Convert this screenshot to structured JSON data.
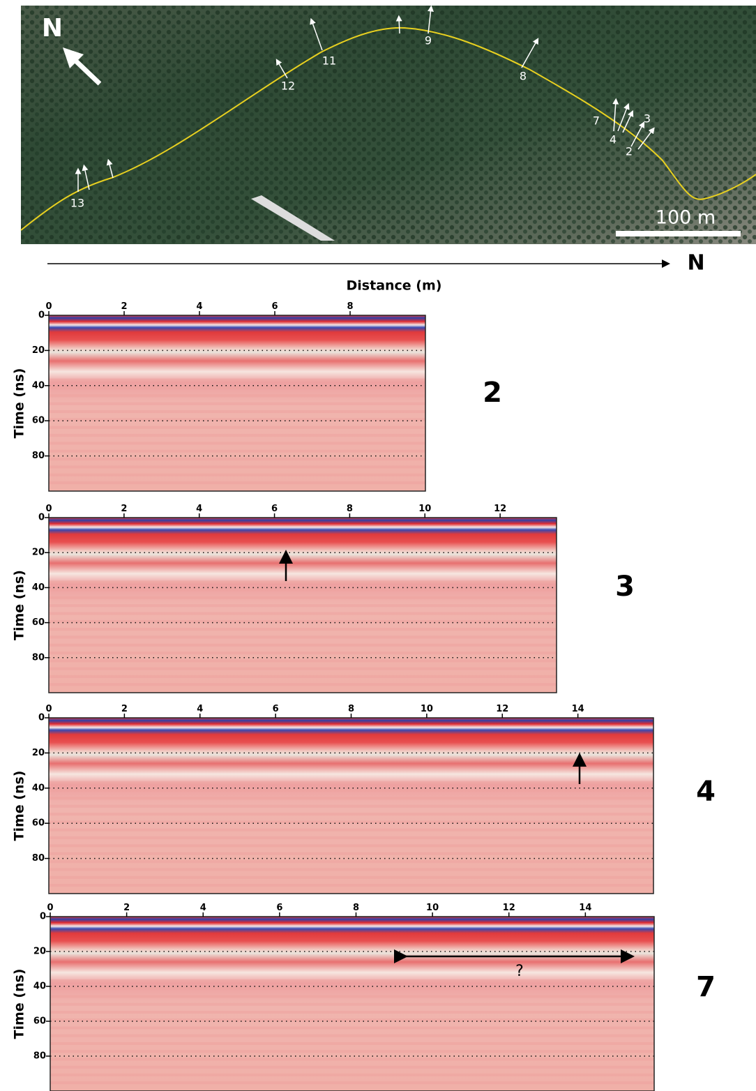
{
  "map": {
    "north": "N",
    "scale_bar": "100 m",
    "profile_labels": [
      "2",
      "3",
      "4",
      "7",
      "8",
      "9",
      "11",
      "12",
      "13"
    ]
  },
  "direction": "N",
  "x_axis_label": "Distance (m)",
  "y_axis_label": "Time (ns)",
  "panels": [
    {
      "label": "2",
      "xlim": [
        0,
        10
      ],
      "xticks": [
        0,
        2,
        4,
        6,
        8
      ],
      "ylim": [
        0,
        100
      ],
      "yticks": [
        0,
        20,
        40,
        60,
        80
      ]
    },
    {
      "label": "3",
      "xlim": [
        0,
        13.5
      ],
      "xticks": [
        0,
        2,
        4,
        6,
        8,
        10,
        12
      ],
      "ylim": [
        0,
        100
      ],
      "yticks": [
        0,
        20,
        40,
        60,
        80
      ]
    },
    {
      "label": "4",
      "xlim": [
        0,
        16
      ],
      "xticks": [
        0,
        2,
        4,
        6,
        8,
        10,
        12,
        14
      ],
      "ylim": [
        0,
        100
      ],
      "yticks": [
        0,
        20,
        40,
        60,
        80
      ]
    },
    {
      "label": "7",
      "xlim": [
        0,
        15.8
      ],
      "xticks": [
        0,
        2,
        4,
        6,
        8,
        10,
        12,
        14
      ],
      "ylim": [
        0,
        100
      ],
      "yticks": [
        0,
        20,
        40,
        60,
        80
      ],
      "annotation": "?"
    }
  ]
}
